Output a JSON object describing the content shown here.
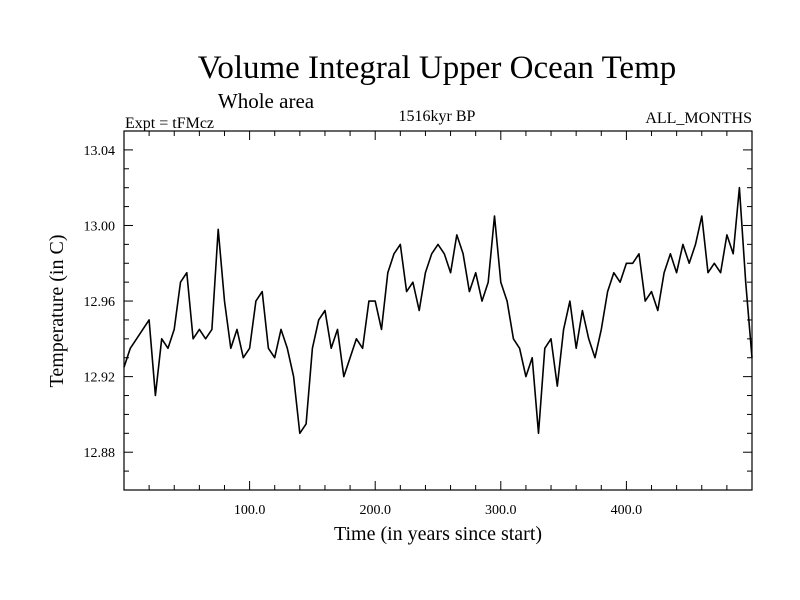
{
  "chart_data": {
    "type": "line",
    "title": "Volume Integral Upper Ocean Temp",
    "subtitle": "Whole area",
    "experiment_label": "Expt = tFMcz",
    "period_label": "1516kyr BP",
    "season_label": "ALL_MONTHS",
    "xlabel": "Time (in years since start)",
    "ylabel": "Temperature (in C)",
    "xlim": [
      0,
      500
    ],
    "ylim": [
      12.86,
      13.05
    ],
    "x_ticks": [
      100,
      200,
      300,
      400
    ],
    "x_tick_labels": [
      "100.0",
      "200.0",
      "300.0",
      "400.0"
    ],
    "y_ticks": [
      12.88,
      12.92,
      12.96,
      13.0,
      13.04
    ],
    "y_tick_labels": [
      "12.88",
      "12.92",
      "12.96",
      "13.00",
      "13.04"
    ],
    "series": [
      {
        "name": "Volume integral upper ocean temperature",
        "x": [
          0,
          5,
          10,
          15,
          20,
          25,
          30,
          35,
          40,
          45,
          50,
          55,
          60,
          65,
          70,
          75,
          80,
          85,
          90,
          95,
          100,
          105,
          110,
          115,
          120,
          125,
          130,
          135,
          140,
          145,
          150,
          155,
          160,
          165,
          170,
          175,
          180,
          185,
          190,
          195,
          200,
          205,
          210,
          215,
          220,
          225,
          230,
          235,
          240,
          245,
          250,
          255,
          260,
          265,
          270,
          275,
          280,
          285,
          290,
          295,
          300,
          305,
          310,
          315,
          320,
          325,
          330,
          335,
          340,
          345,
          350,
          355,
          360,
          365,
          370,
          375,
          380,
          385,
          390,
          395,
          400,
          405,
          410,
          415,
          420,
          425,
          430,
          435,
          440,
          445,
          450,
          455,
          460,
          465,
          470,
          475,
          480,
          485,
          490,
          495,
          500
        ],
        "values": [
          12.925,
          12.935,
          12.94,
          12.945,
          12.95,
          12.91,
          12.94,
          12.935,
          12.945,
          12.97,
          12.975,
          12.94,
          12.945,
          12.94,
          12.945,
          12.998,
          12.96,
          12.935,
          12.945,
          12.93,
          12.935,
          12.96,
          12.965,
          12.935,
          12.93,
          12.945,
          12.935,
          12.92,
          12.89,
          12.895,
          12.935,
          12.95,
          12.955,
          12.935,
          12.945,
          12.92,
          12.93,
          12.94,
          12.935,
          12.96,
          12.96,
          12.945,
          12.975,
          12.985,
          12.99,
          12.965,
          12.97,
          12.955,
          12.975,
          12.985,
          12.99,
          12.985,
          12.975,
          12.995,
          12.985,
          12.965,
          12.975,
          12.96,
          12.97,
          13.005,
          12.97,
          12.96,
          12.94,
          12.935,
          12.92,
          12.93,
          12.89,
          12.935,
          12.94,
          12.915,
          12.945,
          12.96,
          12.935,
          12.955,
          12.94,
          12.93,
          12.945,
          12.965,
          12.975,
          12.97,
          12.98,
          12.98,
          12.985,
          12.96,
          12.965,
          12.955,
          12.975,
          12.985,
          12.975,
          12.99,
          12.98,
          12.99,
          13.005,
          12.975,
          12.98,
          12.975,
          12.995,
          12.985,
          13.02,
          12.97,
          12.93
        ]
      }
    ]
  }
}
